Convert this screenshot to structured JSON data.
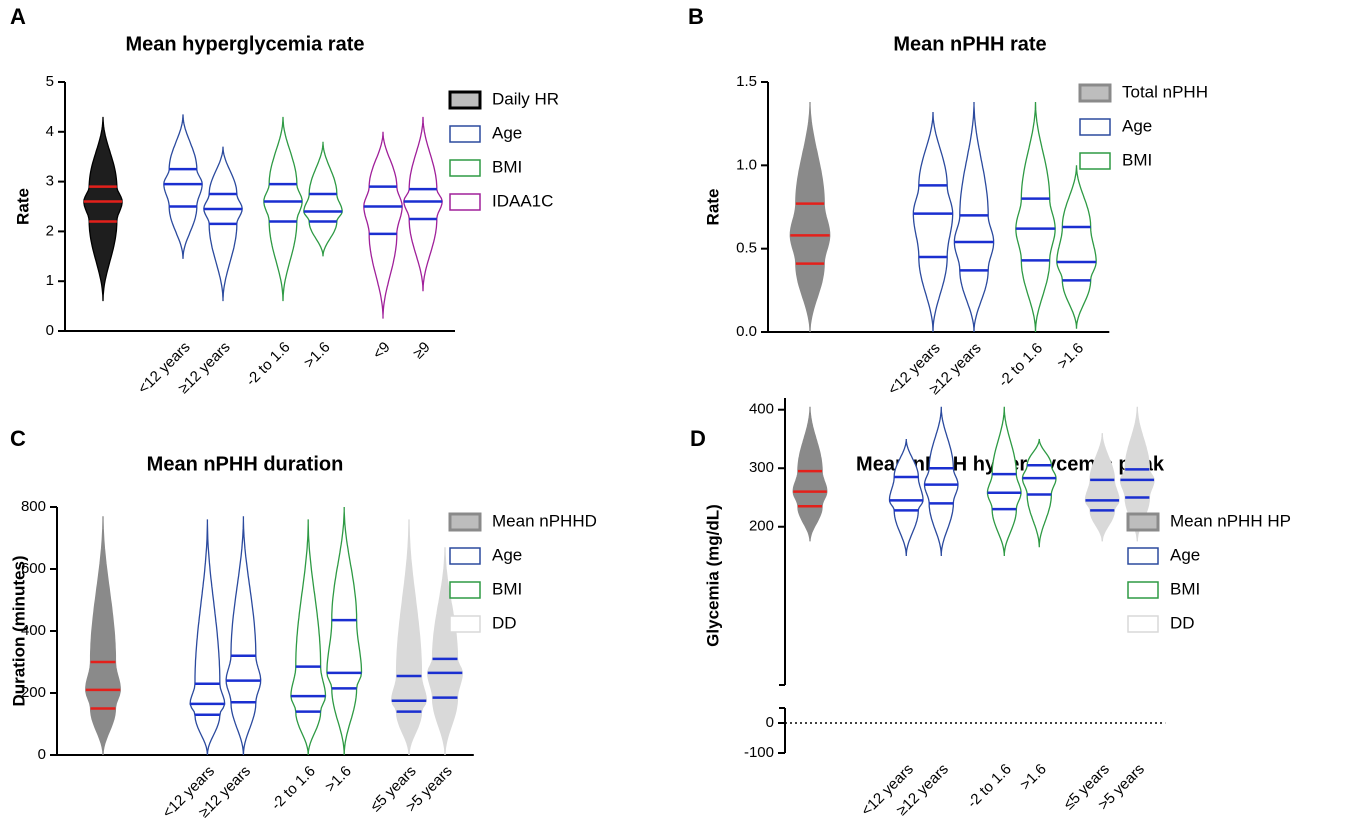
{
  "chart_data": [
    {
      "type": "violin",
      "panel": "A",
      "title": "Mean hyperglycemia rate",
      "y_label": "Rate",
      "ylim": [
        0,
        5
      ],
      "yticks": [
        0,
        1,
        2,
        3,
        4,
        5
      ],
      "series": [
        {
          "name": "Daily HR",
          "color": "#000000",
          "fill": "#1e1e1e",
          "legend_fill": "#bdbdbd",
          "quartile_color": "#e3201b",
          "categories": [
            null
          ],
          "min": [
            0.6
          ],
          "q1": [
            2.2
          ],
          "median": [
            2.6
          ],
          "q3": [
            2.9
          ],
          "max": [
            4.3
          ]
        },
        {
          "name": "Age",
          "color": "#2b4a9e",
          "fill": "#ffffff",
          "legend_fill": "#ffffff",
          "quartile_color": "#1a2fd0",
          "categories": [
            "<12 years",
            "≥12 years"
          ],
          "min": [
            1.45,
            0.6
          ],
          "q1": [
            2.5,
            2.15
          ],
          "median": [
            2.95,
            2.45
          ],
          "q3": [
            3.25,
            2.75
          ],
          "max": [
            4.35,
            3.7
          ]
        },
        {
          "name": "BMI",
          "color": "#2e9a44",
          "fill": "#ffffff",
          "legend_fill": "#ffffff",
          "quartile_color": "#1a2fd0",
          "categories": [
            "-2 to 1.6",
            ">1.6"
          ],
          "min": [
            0.6,
            1.5
          ],
          "q1": [
            2.2,
            2.2
          ],
          "median": [
            2.6,
            2.4
          ],
          "q3": [
            2.95,
            2.75
          ],
          "max": [
            4.3,
            3.8
          ]
        },
        {
          "name": "IDAA1C",
          "color": "#a0209a",
          "fill": "#ffffff",
          "legend_fill": "#ffffff",
          "quartile_color": "#1a2fd0",
          "categories": [
            "<9",
            "≥9"
          ],
          "min": [
            0.25,
            0.8
          ],
          "q1": [
            1.95,
            2.25
          ],
          "median": [
            2.5,
            2.6
          ],
          "q3": [
            2.9,
            2.85
          ],
          "max": [
            4.0,
            4.3
          ]
        }
      ]
    },
    {
      "type": "violin",
      "panel": "B",
      "title": "Mean nPHH rate",
      "y_label": "Rate",
      "ylim": [
        0,
        1.5
      ],
      "yticks": [
        {
          "value": 0,
          "label": "0.0"
        },
        0.5,
        {
          "value": 1,
          "label": "1.0"
        },
        1.5
      ],
      "series": [
        {
          "name": "Total nPHH",
          "color": "#8a8a8a",
          "fill": "#8a8a8a",
          "legend_fill": "#bdbdbd",
          "quartile_color": "#e3201b",
          "categories": [
            null
          ],
          "min": [
            0
          ],
          "q1": [
            0.41
          ],
          "median": [
            0.58
          ],
          "q3": [
            0.77
          ],
          "max": [
            1.38
          ]
        },
        {
          "name": "Age",
          "color": "#2b4a9e",
          "fill": "#ffffff",
          "legend_fill": "#ffffff",
          "quartile_color": "#1a2fd0",
          "categories": [
            "<12 years",
            "≥12 years"
          ],
          "min": [
            0,
            0
          ],
          "q1": [
            0.45,
            0.37
          ],
          "median": [
            0.71,
            0.54
          ],
          "q3": [
            0.88,
            0.7
          ],
          "max": [
            1.32,
            1.38
          ]
        },
        {
          "name": "BMI",
          "color": "#2e9a44",
          "fill": "#ffffff",
          "legend_fill": "#ffffff",
          "quartile_color": "#1a2fd0",
          "categories": [
            "-2 to 1.6",
            ">1.6"
          ],
          "min": [
            0,
            0.02
          ],
          "q1": [
            0.43,
            0.31
          ],
          "median": [
            0.62,
            0.42
          ],
          "q3": [
            0.8,
            0.63
          ],
          "max": [
            1.38,
            1.0
          ]
        }
      ]
    },
    {
      "type": "violin",
      "panel": "C",
      "title": "Mean nPHH duration",
      "y_label": "Duration (minutes)",
      "ylim": [
        0,
        800
      ],
      "yticks": [
        0,
        200,
        400,
        600,
        800
      ],
      "series": [
        {
          "name": "Mean nPHHD",
          "color": "#8a8a8a",
          "fill": "#8a8a8a",
          "legend_fill": "#bdbdbd",
          "quartile_color": "#e3201b",
          "categories": [
            null
          ],
          "min": [
            0
          ],
          "q1": [
            150
          ],
          "median": [
            210
          ],
          "q3": [
            300
          ],
          "max": [
            770
          ]
        },
        {
          "name": "Age",
          "color": "#2b4a9e",
          "fill": "#ffffff",
          "legend_fill": "#ffffff",
          "quartile_color": "#1a2fd0",
          "categories": [
            "<12 years",
            "≥12 years"
          ],
          "min": [
            0,
            0
          ],
          "q1": [
            130,
            170
          ],
          "median": [
            165,
            240
          ],
          "q3": [
            230,
            320
          ],
          "max": [
            760,
            770
          ]
        },
        {
          "name": "BMI",
          "color": "#2e9a44",
          "fill": "#ffffff",
          "legend_fill": "#ffffff",
          "quartile_color": "#1a2fd0",
          "categories": [
            "-2 to 1.6",
            ">1.6"
          ],
          "min": [
            0,
            0
          ],
          "q1": [
            140,
            215
          ],
          "median": [
            190,
            265
          ],
          "q3": [
            285,
            435
          ],
          "max": [
            760,
            800
          ]
        },
        {
          "name": "DD",
          "color": "#d9d9d9",
          "fill": "#d9d9d9",
          "legend_fill": "#ffffff",
          "quartile_color": "#1a2fd0",
          "categories": [
            "≤5 years",
            ">5 years"
          ],
          "min": [
            0,
            0
          ],
          "q1": [
            140,
            185
          ],
          "median": [
            175,
            265
          ],
          "q3": [
            255,
            310
          ],
          "max": [
            760,
            670
          ]
        }
      ]
    },
    {
      "type": "violin",
      "panel": "D",
      "title": "Mean nPHH hyperglycemic peak",
      "y_label": "Glycemia (mg/dL)",
      "ylim": [
        -100,
        420
      ],
      "ybreak": [
        50,
        150
      ],
      "yticks": [
        -100,
        0,
        200,
        300,
        400
      ],
      "hline": 0,
      "series": [
        {
          "name": "Mean nPHH HP",
          "color": "#8a8a8a",
          "fill": "#8a8a8a",
          "legend_fill": "#bdbdbd",
          "quartile_color": "#e3201b",
          "categories": [
            null
          ],
          "min": [
            175
          ],
          "q1": [
            235
          ],
          "median": [
            260
          ],
          "q3": [
            295
          ],
          "max": [
            405
          ]
        },
        {
          "name": "Age",
          "color": "#2b4a9e",
          "fill": "#ffffff",
          "legend_fill": "#ffffff",
          "quartile_color": "#1a2fd0",
          "categories": [
            "<12 years",
            "≥12 years"
          ],
          "min": [
            150,
            150
          ],
          "q1": [
            228,
            240
          ],
          "median": [
            245,
            272
          ],
          "q3": [
            285,
            300
          ],
          "max": [
            350,
            405
          ]
        },
        {
          "name": "BMI",
          "color": "#2e9a44",
          "fill": "#ffffff",
          "legend_fill": "#ffffff",
          "quartile_color": "#1a2fd0",
          "categories": [
            "-2 to 1.6",
            ">1.6"
          ],
          "min": [
            150,
            165
          ],
          "q1": [
            230,
            255
          ],
          "median": [
            258,
            283
          ],
          "q3": [
            290,
            305
          ],
          "max": [
            405,
            350
          ]
        },
        {
          "name": "DD",
          "color": "#d9d9d9",
          "fill": "#d9d9d9",
          "legend_fill": "#ffffff",
          "quartile_color": "#1a2fd0",
          "categories": [
            "≤5 years",
            ">5 years"
          ],
          "min": [
            175,
            175
          ],
          "q1": [
            228,
            250
          ],
          "median": [
            245,
            280
          ],
          "q3": [
            280,
            298
          ],
          "max": [
            360,
            405
          ]
        }
      ]
    }
  ]
}
